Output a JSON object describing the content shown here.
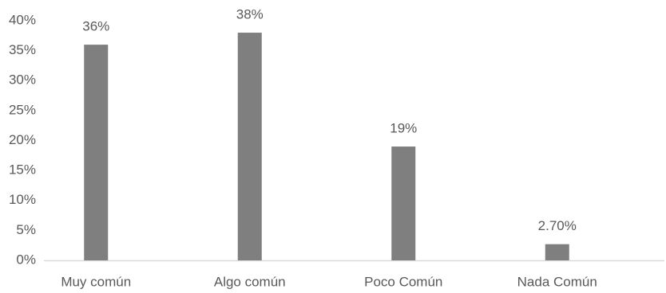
{
  "chart_data": {
    "type": "bar",
    "categories": [
      "Muy común",
      "Algo común",
      "Poco Común",
      "Nada Común"
    ],
    "values": [
      36,
      38,
      19,
      2.7
    ],
    "value_labels": [
      "36%",
      "38%",
      "19%",
      "2.70%"
    ],
    "color": "#7f7f7f",
    "ylim": [
      0,
      40
    ],
    "yticks": [
      {
        "value": 0,
        "label": "0%"
      },
      {
        "value": 5,
        "label": "5%"
      },
      {
        "value": 10,
        "label": "10%"
      },
      {
        "value": 15,
        "label": "15%"
      },
      {
        "value": 20,
        "label": "20%"
      },
      {
        "value": 25,
        "label": "25%"
      },
      {
        "value": 30,
        "label": "30%"
      },
      {
        "value": 35,
        "label": "35%"
      },
      {
        "value": 40,
        "label": "40%"
      }
    ],
    "grid": false
  }
}
